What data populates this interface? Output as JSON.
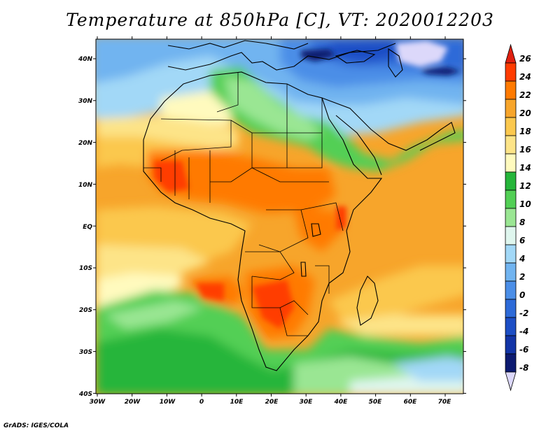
{
  "title": "Temperature at 850hPa [C], VT: 2020012203",
  "credit": "GrADS: IGES/COLA",
  "lat_labels": [
    "40N",
    "30N",
    "20N",
    "10N",
    "EQ",
    "10S",
    "20S",
    "30S",
    "40S"
  ],
  "lon_labels": [
    "30W",
    "20W",
    "10W",
    "0",
    "10E",
    "20E",
    "30E",
    "40E",
    "50E",
    "60E",
    "70E"
  ],
  "colorbar": {
    "labels": [
      "26",
      "24",
      "22",
      "20",
      "18",
      "16",
      "14",
      "12",
      "10",
      "8",
      "6",
      "4",
      "2",
      "0",
      "-2",
      "-4",
      "-6",
      "-8"
    ],
    "colors": [
      "#e02010",
      "#ff3c00",
      "#ff7a00",
      "#f7a52b",
      "#fbc84e",
      "#fde488",
      "#fffabe",
      "#25b53a",
      "#52cf55",
      "#9ae693",
      "#dff6ee",
      "#a2d8f7",
      "#71b4f0",
      "#4b8ee7",
      "#2d6ad8",
      "#1c4ec5",
      "#1234a6",
      "#0c1a70",
      "#dcd8fa"
    ]
  }
}
